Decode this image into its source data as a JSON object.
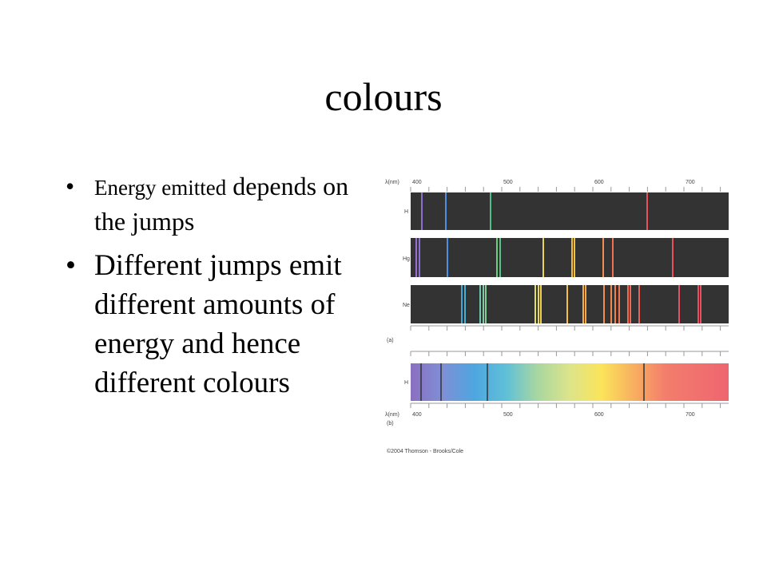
{
  "slide": {
    "title": "colours",
    "bullets": [
      {
        "parts": [
          "Energy emitted",
          "depends on the jumps"
        ]
      },
      {
        "parts": [
          "Different jumps emit different amounts of energy and hence different colours"
        ]
      }
    ],
    "figure": {
      "axis_label": "λ(nm)",
      "ticks": [
        "400",
        "500",
        "600",
        "700"
      ],
      "rows": [
        "H",
        "Hg",
        "Ne"
      ],
      "panel_a": "(a)",
      "panel_b": "(b)",
      "continuous_row": "H",
      "credit": "©2004 Thomson - Brooks/Cole"
    }
  }
}
